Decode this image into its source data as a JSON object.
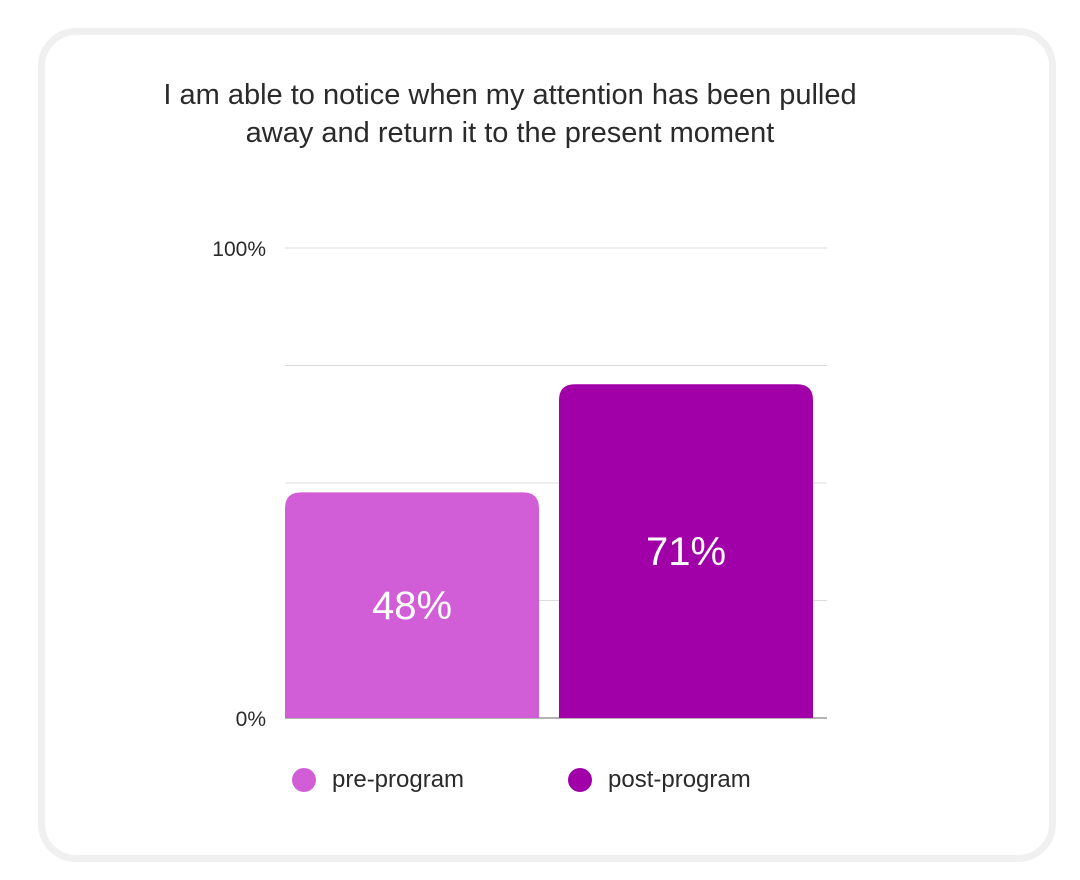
{
  "chart_data": {
    "type": "bar",
    "title_lines": [
      "I am able to notice when my attention has been pulled",
      "away and return it to the present moment"
    ],
    "categories": [
      "pre-program",
      "post-program"
    ],
    "values": [
      48,
      71
    ],
    "value_labels": [
      "48%",
      "71%"
    ],
    "colors": [
      "#d15ed6",
      "#a100a9"
    ],
    "ylim": [
      0,
      100
    ],
    "y_tick_labels": [
      "0%",
      "100%"
    ],
    "gridlines": [
      0,
      25,
      50,
      75,
      100
    ],
    "grid": true,
    "legend": {
      "position": "bottom",
      "entries": [
        "pre-program",
        "post-program"
      ]
    }
  }
}
